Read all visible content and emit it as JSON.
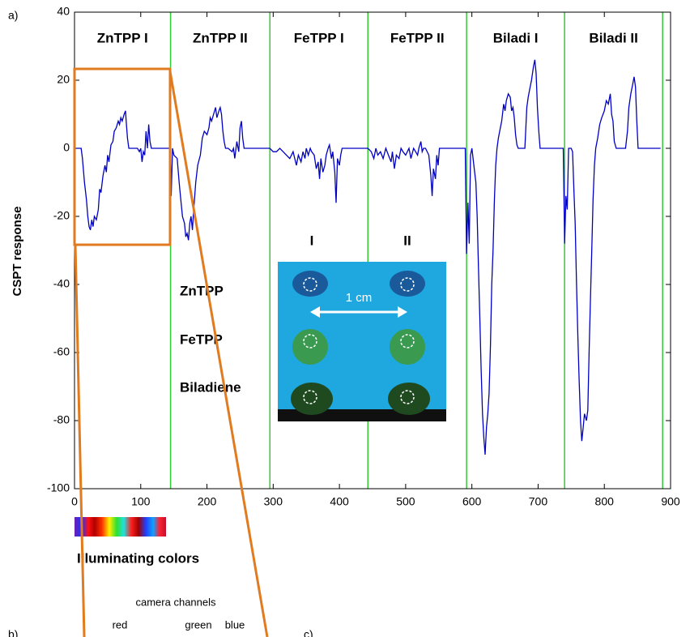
{
  "chart_data": {
    "type": "line",
    "ylabel": "CSPT response",
    "color": "#0000c0",
    "separator_color": "#33cc33",
    "segment_labels": [
      "ZnTPP I",
      "ZnTPP II",
      "FeTPP I",
      "FeTPP II",
      "Biladi I",
      "Biladi II"
    ],
    "separators": [
      145,
      295,
      443,
      592,
      740,
      888
    ],
    "xlim": [
      0,
      900
    ],
    "xticks": [
      0,
      100,
      200,
      300,
      400,
      500,
      600,
      700,
      800,
      900
    ],
    "ylim": [
      -100,
      40
    ],
    "yticks": [
      -100,
      -80,
      -60,
      -40,
      -20,
      0,
      20,
      40
    ],
    "x": [
      0,
      5,
      10,
      12,
      15,
      18,
      20,
      22,
      24,
      26,
      28,
      30,
      33,
      36,
      38,
      40,
      43,
      46,
      48,
      50,
      52,
      55,
      58,
      60,
      63,
      66,
      68,
      70,
      72,
      75,
      77,
      78,
      80,
      82,
      85,
      90,
      95,
      98,
      100,
      102,
      104,
      106,
      108,
      110,
      112,
      114,
      116,
      120,
      130,
      140,
      145,
      146,
      148,
      150,
      155,
      158,
      160,
      163,
      166,
      168,
      170,
      172,
      174,
      176,
      178,
      180,
      183,
      186,
      190,
      193,
      196,
      200,
      203,
      205,
      207,
      210,
      213,
      215,
      218,
      220,
      222,
      224,
      226,
      228,
      232,
      238,
      240,
      242,
      245,
      248,
      250,
      252,
      254,
      256,
      260,
      270,
      285,
      295,
      300,
      305,
      310,
      315,
      320,
      325,
      330,
      335,
      338,
      342,
      345,
      348,
      350,
      353,
      356,
      358,
      362,
      365,
      368,
      370,
      372,
      375,
      378,
      380,
      383,
      385,
      388,
      390,
      393,
      395,
      397,
      400,
      402,
      404,
      410,
      420,
      443,
      448,
      452,
      455,
      458,
      462,
      466,
      470,
      474,
      478,
      480,
      483,
      486,
      490,
      493,
      496,
      500,
      505,
      508,
      512,
      515,
      518,
      520,
      523,
      525,
      527,
      530,
      535,
      538,
      540,
      542,
      545,
      547,
      549,
      551,
      555,
      570,
      590,
      592,
      594,
      596,
      598,
      600,
      603,
      606,
      608,
      610,
      612,
      614,
      616,
      618,
      620,
      622,
      624,
      626,
      628,
      630,
      632,
      634,
      636,
      638,
      640,
      642,
      645,
      648,
      650,
      652,
      655,
      658,
      660,
      662,
      664,
      666,
      668,
      670,
      675,
      680,
      683,
      685,
      688,
      690,
      693,
      695,
      697,
      699,
      701,
      703,
      708,
      720,
      738,
      740,
      742,
      744,
      746,
      750,
      752,
      754,
      756,
      758,
      760,
      762,
      764,
      766,
      768,
      770,
      773,
      775,
      777,
      779,
      781,
      783,
      785,
      787,
      790,
      793,
      796,
      798,
      800,
      803,
      806,
      809,
      811,
      813,
      815,
      818,
      825,
      832,
      835,
      837,
      840,
      843,
      845,
      847,
      849,
      851,
      860,
      875,
      885
    ],
    "values": [
      0,
      0,
      0,
      -3,
      -10,
      -15,
      -20,
      -23,
      -24,
      -21,
      -23,
      -20,
      -21,
      -18,
      -12,
      -13,
      -8,
      -5,
      -7,
      -2,
      -4,
      1,
      2,
      5,
      6,
      8,
      7,
      9,
      8,
      10,
      11,
      8,
      3,
      0,
      0,
      0,
      0,
      -1,
      0,
      -4,
      -1,
      -2,
      5,
      0,
      7,
      2,
      0,
      0,
      0,
      0,
      0,
      -14,
      0,
      -2,
      -3,
      -10,
      -14,
      -20,
      -22,
      -26,
      -25,
      -27,
      -22,
      -20,
      -24,
      -18,
      -10,
      -5,
      -2,
      3,
      5,
      4,
      6,
      9,
      8,
      10,
      12,
      9,
      11,
      12,
      10,
      5,
      2,
      0,
      0,
      -1,
      0,
      -3,
      2,
      -1,
      6,
      8,
      3,
      0,
      0,
      0,
      0,
      0,
      -1,
      -1,
      0,
      -1,
      -2,
      -3,
      -1,
      -5,
      -2,
      -4,
      -1,
      -3,
      0,
      -2,
      0,
      -1,
      -2,
      -6,
      -4,
      -9,
      -3,
      -7,
      -5,
      -2,
      0,
      1,
      -3,
      -1,
      -7,
      -16,
      -3,
      -5,
      -2,
      0,
      0,
      0,
      0,
      -1,
      -3,
      0,
      -2,
      -1,
      -3,
      0,
      -2,
      -4,
      -1,
      -6,
      -2,
      -3,
      0,
      -1,
      -2,
      0,
      -3,
      0,
      -1,
      -2,
      0,
      2,
      -1,
      0,
      0,
      -2,
      -8,
      -14,
      -6,
      -9,
      -2,
      -5,
      0,
      0,
      0,
      0,
      -31,
      -16,
      -28,
      -2,
      0,
      -5,
      -10,
      -20,
      -35,
      -50,
      -65,
      -78,
      -85,
      -90,
      -82,
      -78,
      -72,
      -58,
      -40,
      -30,
      -15,
      -5,
      0,
      3,
      5,
      8,
      13,
      11,
      14,
      16,
      15,
      11,
      12,
      9,
      4,
      1,
      0,
      0,
      0,
      12,
      15,
      18,
      20,
      24,
      26,
      22,
      12,
      5,
      0,
      0,
      0,
      0,
      -28,
      -14,
      -18,
      0,
      0,
      -1,
      -12,
      -22,
      -40,
      -55,
      -68,
      -80,
      -86,
      -82,
      -78,
      -80,
      -77,
      -60,
      -45,
      -30,
      -15,
      -5,
      0,
      3,
      7,
      9,
      10,
      11,
      14,
      13,
      16,
      10,
      8,
      2,
      0,
      0,
      0,
      5,
      12,
      16,
      19,
      21,
      18,
      8,
      0,
      0,
      0,
      0
    ]
  },
  "panel_labels": [
    "a)",
    "b)",
    "c)"
  ],
  "inset": {
    "columns": [
      "I",
      "II"
    ],
    "rows": [
      "ZnTPP",
      "FeTPP",
      "Biladiene"
    ],
    "scale": "1 cm"
  },
  "spectrum_caption": "Illuminating colors",
  "camera": {
    "title": "camera channels",
    "channels": [
      "red",
      "green",
      "blue"
    ]
  }
}
